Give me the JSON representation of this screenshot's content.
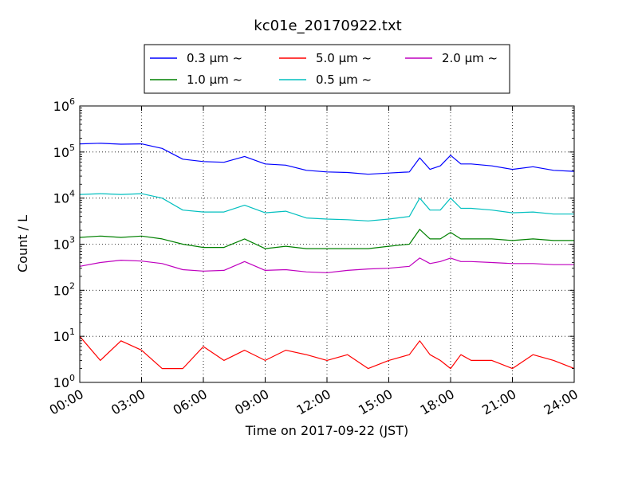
{
  "chart_data": {
    "type": "line",
    "title": "kc01e_20170922.txt",
    "xlabel": "Time on 2017-09-22 (JST)",
    "ylabel": "Count / L",
    "y_scale": "log",
    "ylim": [
      1,
      1000000
    ],
    "xlim": [
      "00:00",
      "24:00"
    ],
    "x_ticks": [
      "00:00",
      "03:00",
      "06:00",
      "09:00",
      "12:00",
      "15:00",
      "18:00",
      "21:00",
      "24:00"
    ],
    "y_ticks": [
      {
        "base": "10",
        "exp": "0"
      },
      {
        "base": "10",
        "exp": "1"
      },
      {
        "base": "10",
        "exp": "2"
      },
      {
        "base": "10",
        "exp": "3"
      },
      {
        "base": "10",
        "exp": "4"
      },
      {
        "base": "10",
        "exp": "5"
      },
      {
        "base": "10",
        "exp": "6"
      }
    ],
    "grid": true,
    "legend_position": "top-center",
    "x": [
      "00:00",
      "01:00",
      "02:00",
      "03:00",
      "04:00",
      "05:00",
      "06:00",
      "07:00",
      "08:00",
      "09:00",
      "10:00",
      "11:00",
      "12:00",
      "13:00",
      "14:00",
      "15:00",
      "16:00",
      "16:30",
      "17:00",
      "17:30",
      "18:00",
      "18:30",
      "19:00",
      "20:00",
      "21:00",
      "22:00",
      "23:00",
      "24:00"
    ],
    "series": [
      {
        "name": "0.3 μm ~",
        "color": "#0000ff",
        "values": [
          150000,
          155000,
          148000,
          150000,
          120000,
          70000,
          62000,
          60000,
          80000,
          55000,
          52000,
          40000,
          37000,
          36000,
          33000,
          35000,
          37000,
          75000,
          42000,
          50000,
          85000,
          55000,
          55000,
          50000,
          42000,
          48000,
          40000,
          38000
        ]
      },
      {
        "name": "1.0 μm ~",
        "color": "#008000",
        "values": [
          1400,
          1500,
          1400,
          1500,
          1300,
          1000,
          850,
          850,
          1300,
          800,
          900,
          800,
          800,
          800,
          800,
          900,
          1000,
          2100,
          1300,
          1300,
          1800,
          1300,
          1300,
          1300,
          1200,
          1300,
          1200,
          1200
        ]
      },
      {
        "name": "5.0 μm ~",
        "color": "#ff0000",
        "values": [
          10,
          3,
          8,
          5,
          2,
          2,
          6,
          3,
          5,
          3,
          5,
          4,
          3,
          4,
          2,
          3,
          4,
          8,
          4,
          3,
          2,
          4,
          3,
          3,
          2,
          4,
          3,
          2
        ]
      },
      {
        "name": "0.5 μm ~",
        "color": "#00bfbf",
        "values": [
          12000,
          12500,
          12000,
          12500,
          10000,
          5500,
          5000,
          5000,
          7000,
          4800,
          5200,
          3700,
          3500,
          3400,
          3200,
          3500,
          4000,
          10000,
          5500,
          5500,
          10000,
          6000,
          6000,
          5500,
          4800,
          5000,
          4500,
          4500
        ]
      },
      {
        "name": "2.0 μm ~",
        "color": "#bf00bf",
        "values": [
          330,
          400,
          450,
          430,
          380,
          280,
          260,
          270,
          420,
          270,
          280,
          250,
          240,
          270,
          290,
          300,
          330,
          500,
          380,
          420,
          500,
          420,
          420,
          400,
          380,
          380,
          360,
          360
        ]
      }
    ]
  }
}
